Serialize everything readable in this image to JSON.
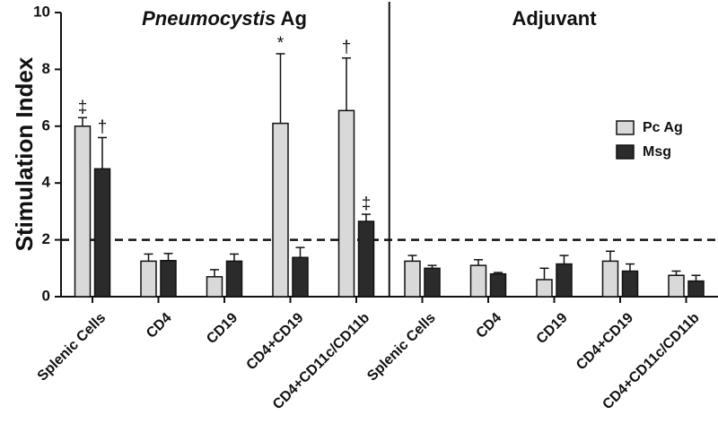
{
  "chart_data": {
    "type": "bar",
    "ylabel": "Stimulation Index",
    "xlabel": "",
    "ylim": [
      0,
      10
    ],
    "yticks": [
      0,
      2,
      4,
      6,
      8,
      10
    ],
    "reference_line": {
      "y": 2,
      "style": "dashed"
    },
    "legend_position": "right",
    "series": [
      {
        "name": "Pc Ag",
        "color": "#d9d9d9"
      },
      {
        "name": "Msg",
        "color": "#2b2b2b"
      }
    ],
    "panels": [
      {
        "title_italic": "Pneumocystis",
        "title_rest": " Ag",
        "categories": [
          "Splenic Cells",
          "CD4",
          "CD19",
          "CD4+CD19",
          "CD4+CD11c/CD11b"
        ],
        "values": {
          "Pc Ag": [
            6.0,
            1.25,
            0.7,
            6.1,
            6.55
          ],
          "Msg": [
            4.5,
            1.27,
            1.25,
            1.38,
            2.65
          ]
        },
        "errors": {
          "Pc Ag": [
            0.3,
            0.25,
            0.25,
            2.45,
            1.85
          ],
          "Msg": [
            1.1,
            0.25,
            0.25,
            0.35,
            0.25
          ]
        },
        "significance": {
          "Pc Ag": [
            "‡",
            "",
            "",
            "*",
            "†"
          ],
          "Msg": [
            "†",
            "",
            "",
            "",
            "‡"
          ]
        }
      },
      {
        "title_italic": "",
        "title_rest": "Adjuvant",
        "categories": [
          "Splenic Cells",
          "CD4",
          "CD19",
          "CD4+CD19",
          "CD4+CD11c/CD11b"
        ],
        "values": {
          "Pc Ag": [
            1.25,
            1.1,
            0.6,
            1.25,
            0.75
          ],
          "Msg": [
            1.0,
            0.8,
            1.15,
            0.9,
            0.55
          ]
        },
        "errors": {
          "Pc Ag": [
            0.2,
            0.2,
            0.4,
            0.35,
            0.15
          ],
          "Msg": [
            0.1,
            0.05,
            0.3,
            0.25,
            0.2
          ]
        },
        "significance": {
          "Pc Ag": [
            "",
            "",
            "",
            "",
            ""
          ],
          "Msg": [
            "",
            "",
            "",
            "",
            ""
          ]
        }
      }
    ]
  }
}
